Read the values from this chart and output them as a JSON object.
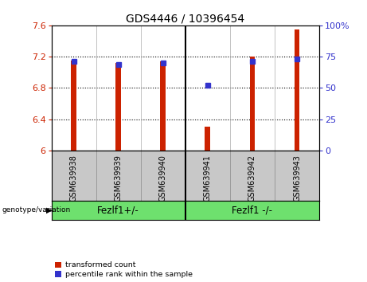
{
  "title": "GDS4446 / 10396454",
  "samples": [
    "GSM639938",
    "GSM639939",
    "GSM639940",
    "GSM639941",
    "GSM639942",
    "GSM639943"
  ],
  "red_values": [
    7.15,
    7.12,
    7.14,
    6.31,
    7.2,
    7.55
  ],
  "blue_values": [
    71,
    69,
    70,
    52,
    71,
    73
  ],
  "ylim_left": [
    6.0,
    7.6
  ],
  "ylim_right": [
    0,
    100
  ],
  "yticks_left": [
    6.0,
    6.4,
    6.8,
    7.2,
    7.6
  ],
  "yticks_right": [
    0,
    25,
    50,
    75,
    100
  ],
  "ytick_labels_left": [
    "6",
    "6.4",
    "6.8",
    "7.2",
    "7.6"
  ],
  "ytick_labels_right": [
    "0",
    "25",
    "50",
    "75",
    "100%"
  ],
  "groups": [
    {
      "label": "Fezlf1+/-",
      "span": [
        0,
        2
      ]
    },
    {
      "label": "Fezlf1 -/-",
      "span": [
        3,
        5
      ]
    }
  ],
  "group_separator": 2.5,
  "group_label": "genotype/variation",
  "group_bg": "#6EE06E",
  "sample_bg": "#C8C8C8",
  "legend_items": [
    {
      "label": "transformed count",
      "color": "#CC2200"
    },
    {
      "label": "percentile rank within the sample",
      "color": "#3333CC"
    }
  ],
  "bar_color": "#CC2200",
  "dot_color": "#3333CC",
  "base_value": 6.0,
  "bg_color": "#FFFFFF",
  "tick_color_left": "#CC2200",
  "tick_color_right": "#3333CC",
  "bar_width": 0.12
}
